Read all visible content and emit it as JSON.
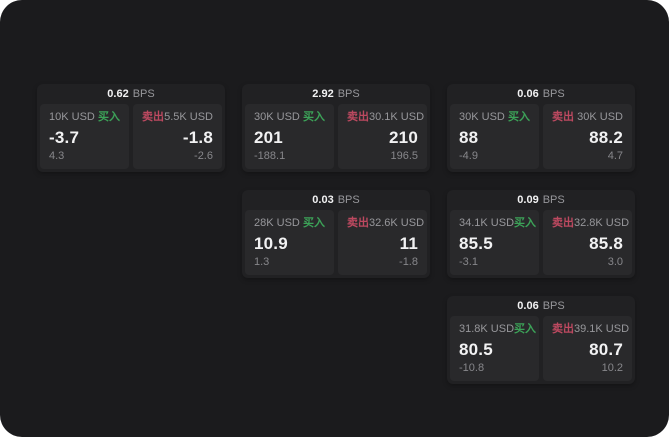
{
  "colors": {
    "surface_bg": "#1b1b1d",
    "card_bg": "#212123",
    "panel_bg": "#29292b",
    "text_primary": "#f2f2f3",
    "text_secondary": "#97979b",
    "text_dim": "#87878b",
    "buy_green": "#3ca258",
    "sell_red": "#bd4960"
  },
  "labels": {
    "bps_unit": "BPS",
    "buy": "买入",
    "sell": "卖出"
  },
  "cards": [
    {
      "row": 1,
      "col": 1,
      "bps": "0.62",
      "buy": {
        "amount": "10K USD",
        "value": "-3.7",
        "delta": "4.3"
      },
      "sell": {
        "amount": "5.5K USD",
        "value": "-1.8",
        "delta": "-2.6"
      }
    },
    {
      "row": 1,
      "col": 2,
      "bps": "2.92",
      "buy": {
        "amount": "30K USD",
        "value": "201",
        "delta": "-188.1"
      },
      "sell": {
        "amount": "30.1K USD",
        "value": "210",
        "delta": "196.5"
      }
    },
    {
      "row": 1,
      "col": 3,
      "bps": "0.06",
      "buy": {
        "amount": "30K USD",
        "value": "88",
        "delta": "-4.9"
      },
      "sell": {
        "amount": "30K USD",
        "value": "88.2",
        "delta": "4.7"
      }
    },
    {
      "row": 2,
      "col": 2,
      "bps": "0.03",
      "buy": {
        "amount": "28K USD",
        "value": "10.9",
        "delta": "1.3"
      },
      "sell": {
        "amount": "32.6K USD",
        "value": "11",
        "delta": "-1.8"
      }
    },
    {
      "row": 2,
      "col": 3,
      "bps": "0.09",
      "buy": {
        "amount": "34.1K USD",
        "value": "85.5",
        "delta": "-3.1"
      },
      "sell": {
        "amount": "32.8K USD",
        "value": "85.8",
        "delta": "3.0"
      }
    },
    {
      "row": 3,
      "col": 3,
      "bps": "0.06",
      "buy": {
        "amount": "31.8K USD",
        "value": "80.5",
        "delta": "-10.8"
      },
      "sell": {
        "amount": "39.1K USD",
        "value": "80.7",
        "delta": "10.2"
      }
    }
  ]
}
